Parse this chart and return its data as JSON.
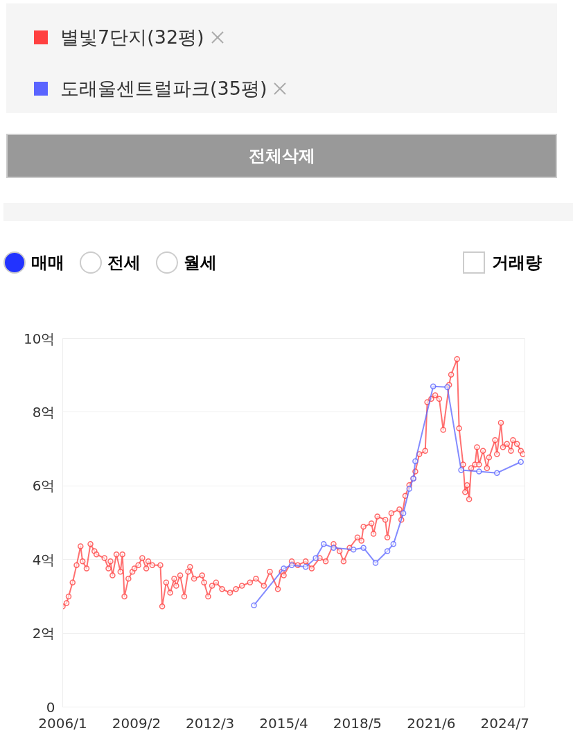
{
  "chart_data": {
    "type": "line",
    "marker": "circle",
    "grid": "y",
    "legend": "top",
    "annotations": [
      "전체삭제",
      "매매",
      "전세",
      "월세",
      "거래량"
    ],
    "xlim": [
      "2006-01",
      "2025-05"
    ],
    "xticks": [
      {
        "value": "2006-01",
        "label": "2006/1"
      },
      {
        "value": "2009-02",
        "label": "2009/2"
      },
      {
        "value": "2012-03",
        "label": "2012/3"
      },
      {
        "value": "2015-04",
        "label": "2015/4"
      },
      {
        "value": "2018-05",
        "label": "2018/5"
      },
      {
        "value": "2021-06",
        "label": "2021/6"
      },
      {
        "value": "2024-07",
        "label": "2024/7"
      }
    ],
    "ylim": [
      0,
      10
    ],
    "yticks": [
      0,
      {
        "value": 2,
        "label": "2억"
      },
      {
        "value": 4,
        "label": "4억"
      },
      {
        "value": 6,
        "label": "6억"
      },
      {
        "value": 8,
        "label": "8억"
      },
      {
        "value": 10,
        "label": "10억"
      }
    ],
    "series": [
      {
        "name": "별빛7단지(32평)",
        "color": "#ff4040",
        "x": [
          "2006-01",
          "2006-03",
          "2006-04",
          "2006-06",
          "2006-08",
          "2006-10",
          "2006-11",
          "2007-01",
          "2007-03",
          "2007-05",
          "2007-06",
          "2007-10",
          "2007-12",
          "2008-01",
          "2008-02",
          "2008-04",
          "2008-06",
          "2008-07",
          "2008-08",
          "2008-10",
          "2008-12",
          "2009-01",
          "2009-03",
          "2009-05",
          "2009-07",
          "2009-08",
          "2009-10",
          "2010-02",
          "2010-03",
          "2010-05",
          "2010-07",
          "2010-09",
          "2010-10",
          "2010-12",
          "2011-02",
          "2011-04",
          "2011-05",
          "2011-07",
          "2011-11",
          "2011-12",
          "2012-02",
          "2012-04",
          "2012-06",
          "2012-09",
          "2013-01",
          "2013-04",
          "2013-07",
          "2013-11",
          "2014-02",
          "2014-06",
          "2014-09",
          "2015-01",
          "2015-03",
          "2015-04",
          "2015-08",
          "2015-11",
          "2016-03",
          "2016-06",
          "2016-10",
          "2017-01",
          "2017-05",
          "2017-08",
          "2017-10",
          "2018-01",
          "2018-05",
          "2018-07",
          "2018-08",
          "2018-12",
          "2019-01",
          "2019-03",
          "2019-07",
          "2019-08",
          "2019-10",
          "2020-02",
          "2020-03",
          "2020-05",
          "2020-07",
          "2020-09",
          "2020-10",
          "2020-12",
          "2021-03",
          "2021-04",
          "2021-06",
          "2021-08",
          "2021-10",
          "2021-12",
          "2022-03",
          "2022-04",
          "2022-07",
          "2022-08",
          "2022-10",
          "2022-11",
          "2022-12",
          "2023-01",
          "2023-02",
          "2023-04",
          "2023-05",
          "2023-06",
          "2023-08",
          "2023-10",
          "2023-11",
          "2024-02",
          "2024-03",
          "2024-05",
          "2024-06",
          "2024-08",
          "2024-10",
          "2024-11",
          "2025-01",
          "2025-03",
          "2025-04"
        ],
        "values": [
          2.73,
          2.82,
          3.0,
          3.38,
          3.85,
          4.36,
          3.95,
          3.76,
          4.42,
          4.23,
          4.14,
          4.04,
          3.76,
          3.95,
          3.57,
          4.14,
          3.67,
          4.14,
          3.0,
          3.48,
          3.67,
          3.76,
          3.85,
          4.04,
          3.76,
          3.95,
          3.85,
          3.85,
          2.73,
          3.38,
          3.1,
          3.48,
          3.29,
          3.57,
          3.0,
          3.67,
          3.8,
          3.48,
          3.57,
          3.38,
          3.0,
          3.29,
          3.38,
          3.2,
          3.1,
          3.2,
          3.29,
          3.38,
          3.48,
          3.29,
          3.67,
          3.2,
          3.67,
          3.57,
          3.95,
          3.85,
          3.95,
          3.76,
          4.04,
          3.95,
          4.42,
          4.23,
          3.95,
          4.32,
          4.6,
          4.51,
          4.89,
          4.98,
          4.7,
          5.17,
          5.08,
          4.6,
          5.26,
          5.36,
          5.08,
          5.73,
          6.02,
          6.2,
          6.39,
          6.86,
          6.95,
          8.27,
          8.36,
          8.46,
          8.36,
          7.52,
          8.74,
          9.02,
          9.44,
          7.56,
          6.58,
          5.83,
          6.02,
          5.64,
          6.48,
          6.58,
          7.05,
          6.58,
          6.95,
          6.48,
          6.77,
          7.24,
          6.86,
          7.71,
          7.05,
          7.14,
          6.95,
          7.24,
          7.14,
          6.95,
          6.86
        ]
      },
      {
        "name": "도래울센트럴파크(35평)",
        "color": "#5a64ff",
        "x": [
          "2014-01",
          "2015-04",
          "2015-08",
          "2016-03",
          "2016-08",
          "2016-12",
          "2017-05",
          "2018-03",
          "2018-08",
          "2019-02",
          "2019-08",
          "2019-11",
          "2020-04",
          "2020-07",
          "2020-09",
          "2020-10",
          "2021-07",
          "2022-02",
          "2022-09",
          "2023-06",
          "2024-03",
          "2025-03"
        ],
        "values": [
          2.76,
          3.76,
          3.85,
          3.8,
          4.04,
          4.42,
          4.32,
          4.27,
          4.32,
          3.91,
          4.23,
          4.42,
          5.26,
          5.92,
          6.2,
          6.67,
          8.7,
          8.68,
          6.43,
          6.39,
          6.35,
          6.65
        ]
      }
    ]
  }
}
